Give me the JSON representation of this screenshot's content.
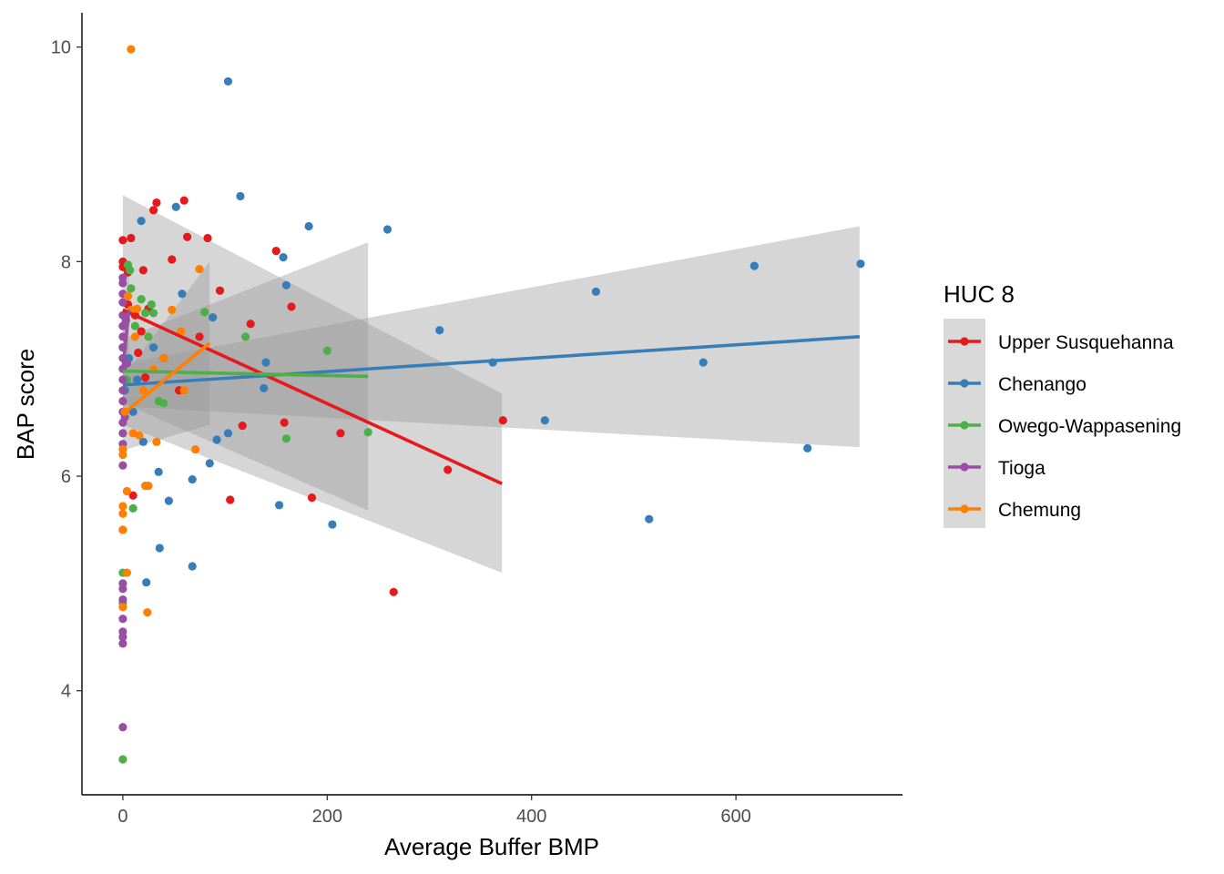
{
  "chart_data": {
    "type": "scatter",
    "xlabel": "Average Buffer BMP",
    "ylabel": "BAP score",
    "xlim": [
      -40,
      763
    ],
    "ylim": [
      3.03,
      10.32
    ],
    "x_ticks": [
      0,
      200,
      400,
      600
    ],
    "y_ticks": [
      4,
      6,
      8,
      10
    ],
    "grid": false,
    "legend": {
      "title": "HUC 8",
      "position": "right"
    },
    "series": [
      {
        "name": "Upper Susquehanna",
        "color": "#e41a1c",
        "fit": {
          "x": [
            0,
            371
          ],
          "y": [
            7.55,
            5.93
          ],
          "ci_upper": [
            8.62,
            6.77
          ],
          "ci_lower": [
            6.48,
            5.1
          ]
        },
        "points": [
          [
            0,
            8.2
          ],
          [
            0,
            8.0
          ],
          [
            0,
            7.95
          ],
          [
            5,
            7.9
          ],
          [
            8,
            8.22
          ],
          [
            12,
            7.5
          ],
          [
            20,
            7.92
          ],
          [
            25,
            7.56
          ],
          [
            30,
            8.48
          ],
          [
            33,
            8.55
          ],
          [
            60,
            8.57
          ],
          [
            48,
            8.02
          ],
          [
            63,
            8.23
          ],
          [
            83,
            8.22
          ],
          [
            95,
            7.73
          ],
          [
            105,
            5.78
          ],
          [
            117,
            6.47
          ],
          [
            125,
            7.42
          ],
          [
            150,
            8.1
          ],
          [
            165,
            7.58
          ],
          [
            158,
            6.5
          ],
          [
            185,
            5.8
          ],
          [
            213,
            6.4
          ],
          [
            265,
            4.92
          ],
          [
            318,
            6.06
          ],
          [
            372,
            6.52
          ],
          [
            10,
            5.82
          ],
          [
            15,
            7.15
          ],
          [
            22,
            6.92
          ],
          [
            40,
            7.1
          ],
          [
            55,
            6.8
          ],
          [
            75,
            7.3
          ],
          [
            5,
            7.6
          ],
          [
            18,
            7.35
          ]
        ]
      },
      {
        "name": "Chenango",
        "color": "#377eb8",
        "fit": {
          "x": [
            0,
            721
          ],
          "y": [
            6.85,
            7.3
          ],
          "ci_upper": [
            7.05,
            8.33
          ],
          "ci_lower": [
            6.65,
            6.27
          ]
        },
        "points": [
          [
            103,
            9.68
          ],
          [
            115,
            8.61
          ],
          [
            182,
            8.33
          ],
          [
            259,
            8.3
          ],
          [
            52,
            8.51
          ],
          [
            18,
            8.38
          ],
          [
            157,
            8.04
          ],
          [
            160,
            7.78
          ],
          [
            88,
            7.48
          ],
          [
            58,
            7.7
          ],
          [
            310,
            7.36
          ],
          [
            362,
            7.06
          ],
          [
            463,
            7.72
          ],
          [
            568,
            7.06
          ],
          [
            618,
            7.96
          ],
          [
            722,
            7.98
          ],
          [
            670,
            6.26
          ],
          [
            515,
            5.6
          ],
          [
            413,
            6.52
          ],
          [
            205,
            5.55
          ],
          [
            153,
            5.73
          ],
          [
            103,
            6.4
          ],
          [
            92,
            6.34
          ],
          [
            85,
            6.12
          ],
          [
            68,
            5.97
          ],
          [
            45,
            5.77
          ],
          [
            35,
            6.04
          ],
          [
            36,
            5.33
          ],
          [
            23,
            5.01
          ],
          [
            68,
            5.16
          ],
          [
            140,
            7.06
          ],
          [
            138,
            6.82
          ],
          [
            20,
            6.32
          ],
          [
            10,
            6.6
          ],
          [
            14,
            6.9
          ],
          [
            2,
            6.8
          ],
          [
            6,
            7.1
          ],
          [
            30,
            7.2
          ]
        ]
      },
      {
        "name": "Owego-Wappasening",
        "color": "#4daf4a",
        "fit": {
          "x": [
            0,
            240
          ],
          "y": [
            6.98,
            6.93
          ],
          "ci_upper": [
            7.28,
            8.18
          ],
          "ci_lower": [
            6.68,
            5.68
          ]
        },
        "points": [
          [
            5,
            7.97
          ],
          [
            7,
            7.92
          ],
          [
            8,
            7.75
          ],
          [
            18,
            7.65
          ],
          [
            22,
            7.52
          ],
          [
            30,
            7.52
          ],
          [
            80,
            7.53
          ],
          [
            120,
            7.3
          ],
          [
            200,
            7.17
          ],
          [
            240,
            6.41
          ],
          [
            160,
            6.35
          ],
          [
            10,
            5.7
          ],
          [
            0,
            5.1
          ],
          [
            0,
            4.82
          ],
          [
            0,
            3.36
          ],
          [
            25,
            7.3
          ],
          [
            35,
            6.7
          ],
          [
            12,
            7.4
          ],
          [
            28,
            7.6
          ],
          [
            0,
            7.2
          ],
          [
            4,
            6.9
          ],
          [
            40,
            6.68
          ]
        ]
      },
      {
        "name": "Tioga",
        "color": "#984ea3",
        "fit": {
          "x": [
            0,
            6
          ],
          "y": [
            7.0,
            7.55
          ],
          "ci_upper": [
            7.3,
            7.95
          ],
          "ci_lower": [
            6.7,
            7.15
          ]
        },
        "points": [
          [
            0,
            7.85
          ],
          [
            0,
            7.8
          ],
          [
            0,
            7.7
          ],
          [
            0,
            7.62
          ],
          [
            0,
            7.5
          ],
          [
            0,
            7.4
          ],
          [
            0,
            7.3
          ],
          [
            0,
            7.2
          ],
          [
            0,
            7.1
          ],
          [
            0,
            7.0
          ],
          [
            0,
            6.9
          ],
          [
            0,
            6.8
          ],
          [
            0,
            6.7
          ],
          [
            0,
            6.6
          ],
          [
            0,
            6.5
          ],
          [
            0,
            6.4
          ],
          [
            0,
            6.3
          ],
          [
            0,
            6.1
          ],
          [
            0,
            5.5
          ],
          [
            0,
            5.0
          ],
          [
            0,
            4.95
          ],
          [
            0,
            4.85
          ],
          [
            0,
            4.67
          ],
          [
            0,
            4.55
          ],
          [
            0,
            4.5
          ],
          [
            0,
            4.44
          ],
          [
            0,
            3.66
          ],
          [
            3,
            7.45
          ],
          [
            4,
            7.05
          ],
          [
            2,
            6.55
          ]
        ]
      },
      {
        "name": "Chemung",
        "color": "#ff7f00",
        "fit": {
          "x": [
            0,
            85
          ],
          "y": [
            6.58,
            7.24
          ],
          "ci_upper": [
            6.92,
            8.0
          ],
          "ci_lower": [
            6.24,
            6.48
          ]
        },
        "points": [
          [
            8,
            9.98
          ],
          [
            5,
            7.68
          ],
          [
            8,
            7.55
          ],
          [
            14,
            7.56
          ],
          [
            48,
            7.55
          ],
          [
            57,
            7.35
          ],
          [
            75,
            7.93
          ],
          [
            71,
            6.25
          ],
          [
            33,
            6.32
          ],
          [
            22,
            5.91
          ],
          [
            25,
            5.91
          ],
          [
            4,
            5.86
          ],
          [
            0,
            5.72
          ],
          [
            0,
            5.65
          ],
          [
            0,
            5.5
          ],
          [
            4,
            5.1
          ],
          [
            0,
            4.78
          ],
          [
            24,
            4.73
          ],
          [
            0,
            6.25
          ],
          [
            0,
            6.2
          ],
          [
            2,
            6.6
          ],
          [
            10,
            6.4
          ],
          [
            20,
            6.8
          ],
          [
            40,
            7.1
          ],
          [
            12,
            7.3
          ],
          [
            60,
            6.8
          ],
          [
            16,
            6.38
          ],
          [
            30,
            7.0
          ]
        ]
      }
    ]
  }
}
